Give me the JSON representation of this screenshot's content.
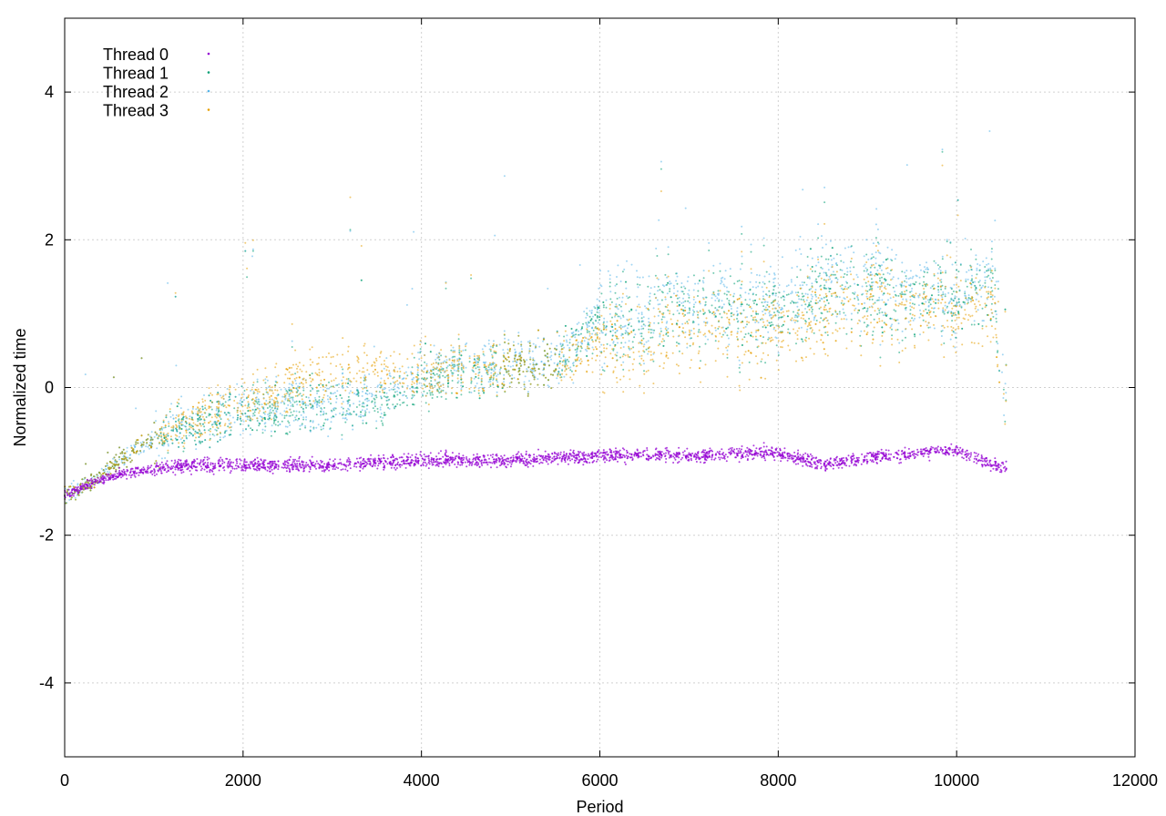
{
  "chart_data": {
    "type": "scatter",
    "title": "",
    "xlabel": "Period",
    "ylabel": "Normalized time",
    "xlim": [
      0,
      12000
    ],
    "ylim": [
      -5,
      5
    ],
    "xticks": [
      0,
      2000,
      4000,
      6000,
      8000,
      10000,
      12000
    ],
    "yticks": [
      -4,
      -2,
      0,
      2,
      4
    ],
    "xtick_labels": [
      "0",
      "2000",
      "4000",
      "6000",
      "8000",
      "10000",
      "12000"
    ],
    "ytick_labels": [
      "-4",
      "-2",
      "0",
      "2",
      "4"
    ],
    "grid": true,
    "legend_position": "top-left",
    "series": [
      {
        "name": "Thread 0",
        "color": "#9400d3",
        "trend": [
          [
            0,
            -1.45
          ],
          [
            300,
            -1.3
          ],
          [
            600,
            -1.18
          ],
          [
            1000,
            -1.1
          ],
          [
            1500,
            -1.05
          ],
          [
            2000,
            -1.05
          ],
          [
            3000,
            -1.05
          ],
          [
            4000,
            -0.98
          ],
          [
            5000,
            -0.98
          ],
          [
            6000,
            -0.92
          ],
          [
            7000,
            -0.92
          ],
          [
            8000,
            -0.88
          ],
          [
            8500,
            -1.05
          ],
          [
            9000,
            -0.95
          ],
          [
            10000,
            -0.85
          ],
          [
            10400,
            -1.05
          ],
          [
            10560,
            -1.1
          ]
        ]
      },
      {
        "name": "Thread 1",
        "color": "#009e73",
        "trend": [
          [
            0,
            -1.45
          ],
          [
            300,
            -1.3
          ],
          [
            600,
            -1.0
          ],
          [
            1000,
            -0.7
          ],
          [
            1500,
            -0.5
          ],
          [
            2000,
            -0.3
          ],
          [
            2500,
            -0.3
          ],
          [
            3000,
            -0.2
          ],
          [
            3500,
            -0.2
          ],
          [
            4000,
            0.1
          ],
          [
            5000,
            0.3
          ],
          [
            5500,
            0.3
          ],
          [
            6000,
            0.9
          ],
          [
            7000,
            1.0
          ],
          [
            8000,
            1.0
          ],
          [
            8500,
            1.3
          ],
          [
            9000,
            1.2
          ],
          [
            10000,
            1.2
          ],
          [
            10400,
            1.4
          ],
          [
            10560,
            -0.4
          ]
        ]
      },
      {
        "name": "Thread 2",
        "color": "#56b4e9",
        "trend": [
          [
            0,
            -1.45
          ],
          [
            300,
            -1.3
          ],
          [
            600,
            -1.0
          ],
          [
            1000,
            -0.7
          ],
          [
            1500,
            -0.5
          ],
          [
            2000,
            -0.3
          ],
          [
            2500,
            -0.2
          ],
          [
            3000,
            -0.3
          ],
          [
            3500,
            -0.1
          ],
          [
            4000,
            0.2
          ],
          [
            5000,
            0.35
          ],
          [
            5500,
            0.3
          ],
          [
            6000,
            1.0
          ],
          [
            7000,
            1.1
          ],
          [
            8000,
            1.1
          ],
          [
            8500,
            1.5
          ],
          [
            9000,
            1.4
          ],
          [
            10000,
            1.2
          ],
          [
            10400,
            1.5
          ],
          [
            10560,
            -0.3
          ]
        ]
      },
      {
        "name": "Thread 3",
        "color": "#e69f00",
        "trend": [
          [
            0,
            -1.45
          ],
          [
            300,
            -1.3
          ],
          [
            600,
            -1.0
          ],
          [
            1000,
            -0.7
          ],
          [
            1500,
            -0.4
          ],
          [
            2000,
            -0.2
          ],
          [
            2500,
            0.0
          ],
          [
            3000,
            0.2
          ],
          [
            3500,
            0.3
          ],
          [
            4000,
            0.2
          ],
          [
            5000,
            0.3
          ],
          [
            5500,
            0.3
          ],
          [
            6000,
            0.6
          ],
          [
            7000,
            0.7
          ],
          [
            8000,
            0.8
          ],
          [
            8500,
            1.0
          ],
          [
            9000,
            1.1
          ],
          [
            10000,
            1.0
          ],
          [
            10400,
            1.1
          ],
          [
            10560,
            -0.4
          ]
        ]
      }
    ]
  }
}
